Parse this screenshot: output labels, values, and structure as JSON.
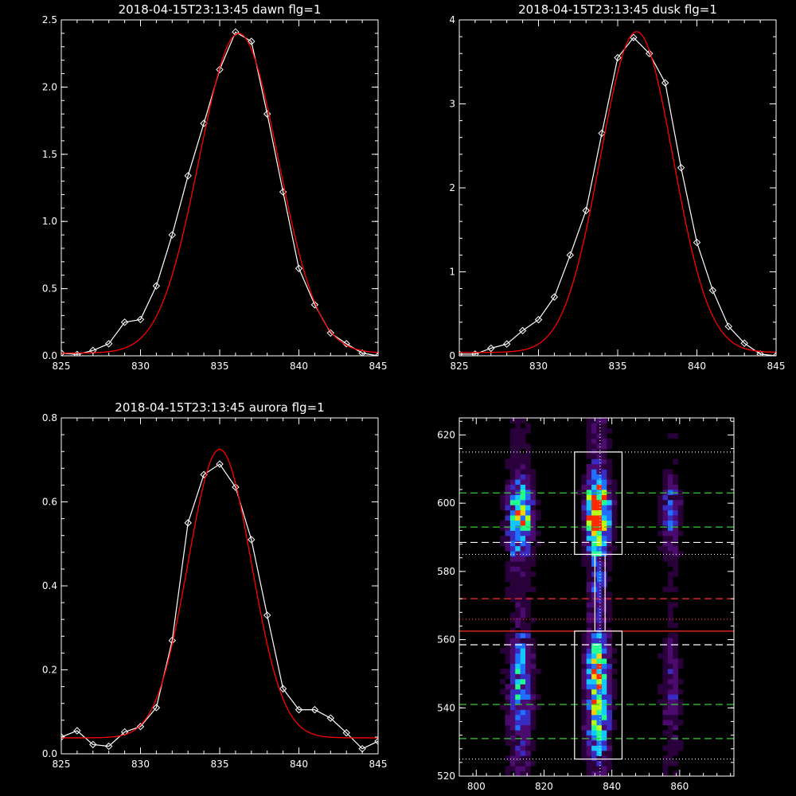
{
  "chart_data": [
    {
      "id": "dawn",
      "type": "line",
      "title": "2018-04-15T23:13:45 dawn flg=1",
      "xlim": [
        825,
        845
      ],
      "ylim": [
        0,
        2.5
      ],
      "xticks": [
        "825",
        "830",
        "835",
        "840",
        "845"
      ],
      "yticks": [
        "0.0",
        "0.5",
        "1.0",
        "1.5",
        "2.0",
        "2.5"
      ],
      "series": [
        {
          "color": "#ffffff",
          "marker": "diamond",
          "x": [
            825,
            826,
            827,
            828,
            829,
            830,
            831,
            832,
            833,
            834,
            835,
            836,
            837,
            838,
            839,
            840,
            841,
            842,
            843,
            844,
            845
          ],
          "y": [
            0.02,
            0.01,
            0.04,
            0.09,
            0.25,
            0.27,
            0.52,
            0.9,
            1.34,
            1.73,
            2.13,
            2.41,
            2.34,
            1.8,
            1.22,
            0.65,
            0.38,
            0.17,
            0.09,
            0.02,
            0.0
          ]
        },
        {
          "color": "#ff0000",
          "marker": "none",
          "fit": {
            "a": 2.38,
            "center": 836.2,
            "sigma": 2.5,
            "baseline": 0.02
          }
        }
      ]
    },
    {
      "id": "dusk",
      "type": "line",
      "title": "2018-04-15T23:13:45 dusk flg=1",
      "xlim": [
        825,
        845
      ],
      "ylim": [
        0,
        4
      ],
      "xticks": [
        "825",
        "830",
        "835",
        "840",
        "845"
      ],
      "yticks": [
        "0",
        "1",
        "2",
        "3",
        "4"
      ],
      "series": [
        {
          "color": "#ffffff",
          "marker": "diamond",
          "x": [
            825,
            826,
            827,
            828,
            829,
            830,
            831,
            832,
            833,
            834,
            835,
            836,
            837,
            838,
            839,
            840,
            841,
            842,
            843,
            844,
            845
          ],
          "y": [
            0.02,
            0.02,
            0.09,
            0.14,
            0.3,
            0.43,
            0.7,
            1.2,
            1.73,
            2.65,
            3.55,
            3.79,
            3.6,
            3.25,
            2.24,
            1.35,
            0.78,
            0.35,
            0.15,
            0.02,
            0.0
          ]
        },
        {
          "color": "#ff0000",
          "marker": "none",
          "fit": {
            "a": 3.82,
            "center": 836.2,
            "sigma": 2.3,
            "baseline": 0.04
          }
        }
      ]
    },
    {
      "id": "aurora",
      "type": "line",
      "title": "2018-04-15T23:13:45 aurora flg=1",
      "xlim": [
        825,
        845
      ],
      "ylim": [
        0,
        0.8
      ],
      "xticks": [
        "825",
        "830",
        "835",
        "840",
        "845"
      ],
      "yticks": [
        "0.0",
        "0.2",
        "0.4",
        "0.6",
        "0.8"
      ],
      "series": [
        {
          "color": "#ffffff",
          "marker": "diamond",
          "x": [
            825,
            826,
            827,
            828,
            829,
            830,
            831,
            832,
            833,
            834,
            835,
            836,
            837,
            838,
            839,
            840,
            841,
            842,
            843,
            844,
            845
          ],
          "y": [
            0.04,
            0.055,
            0.022,
            0.018,
            0.052,
            0.065,
            0.11,
            0.27,
            0.55,
            0.665,
            0.69,
            0.635,
            0.51,
            0.33,
            0.155,
            0.105,
            0.105,
            0.085,
            0.05,
            0.012,
            0.03
          ]
        },
        {
          "color": "#ff0000",
          "marker": "none",
          "fit": {
            "a": 0.687,
            "center": 835.0,
            "sigma": 2.0,
            "baseline": 0.038
          }
        }
      ]
    },
    {
      "id": "image",
      "type": "heatmap",
      "title": "",
      "xlim": [
        795,
        876
      ],
      "ylim": [
        520,
        625
      ],
      "xticks": [
        "800",
        "820",
        "840",
        "860"
      ],
      "yticks": [
        "520",
        "540",
        "560",
        "580",
        "600",
        "620"
      ],
      "colormap": [
        "#000000",
        "#2a003a",
        "#4b0a6e",
        "#3a2bc0",
        "#1f70ff",
        "#14c8ff",
        "#20ff90",
        "#b4ff14",
        "#ffd000",
        "#ff2a00"
      ],
      "bands": [
        {
          "x_center": 813.0,
          "x_width": 2.6,
          "peak": 0.62
        },
        {
          "x_center": 835.8,
          "x_width": 2.4,
          "peak": 1.0
        },
        {
          "x_center": 857.5,
          "x_width": 1.9,
          "peak": 0.32
        }
      ],
      "boxes": [
        {
          "color": "#ffffff",
          "x": [
            829,
            843
          ],
          "y": [
            585,
            615
          ]
        },
        {
          "color": "#ffffff",
          "x": [
            829,
            843
          ],
          "y": [
            525,
            562.5
          ]
        },
        {
          "color": "#ffffff",
          "x": [
            835,
            838
          ],
          "y": [
            562.5,
            585
          ]
        }
      ],
      "hlines": [
        {
          "y": 615,
          "color": "#ffffff",
          "style": "dotted"
        },
        {
          "y": 603,
          "color": "#33cc33",
          "style": "dashed"
        },
        {
          "y": 593,
          "color": "#33cc33",
          "style": "dashed"
        },
        {
          "y": 588.5,
          "color": "#ffffff",
          "style": "dashed"
        },
        {
          "y": 585,
          "color": "#ffffff",
          "style": "dotted"
        },
        {
          "y": 572,
          "color": "#ff2a2a",
          "style": "dashed"
        },
        {
          "y": 566,
          "color": "#ff2a2a",
          "style": "dotted"
        },
        {
          "y": 562.5,
          "color": "#ff2a2a",
          "style": "solid"
        },
        {
          "y": 558.5,
          "color": "#ffffff",
          "style": "dashed"
        },
        {
          "y": 541,
          "color": "#33cc33",
          "style": "dashed"
        },
        {
          "y": 531,
          "color": "#33cc33",
          "style": "dashed"
        },
        {
          "y": 525,
          "color": "#ffffff",
          "style": "dotted"
        }
      ],
      "vlines": [
        {
          "x": 836.5,
          "color": "#ffffff",
          "style": "dotted"
        }
      ]
    }
  ]
}
